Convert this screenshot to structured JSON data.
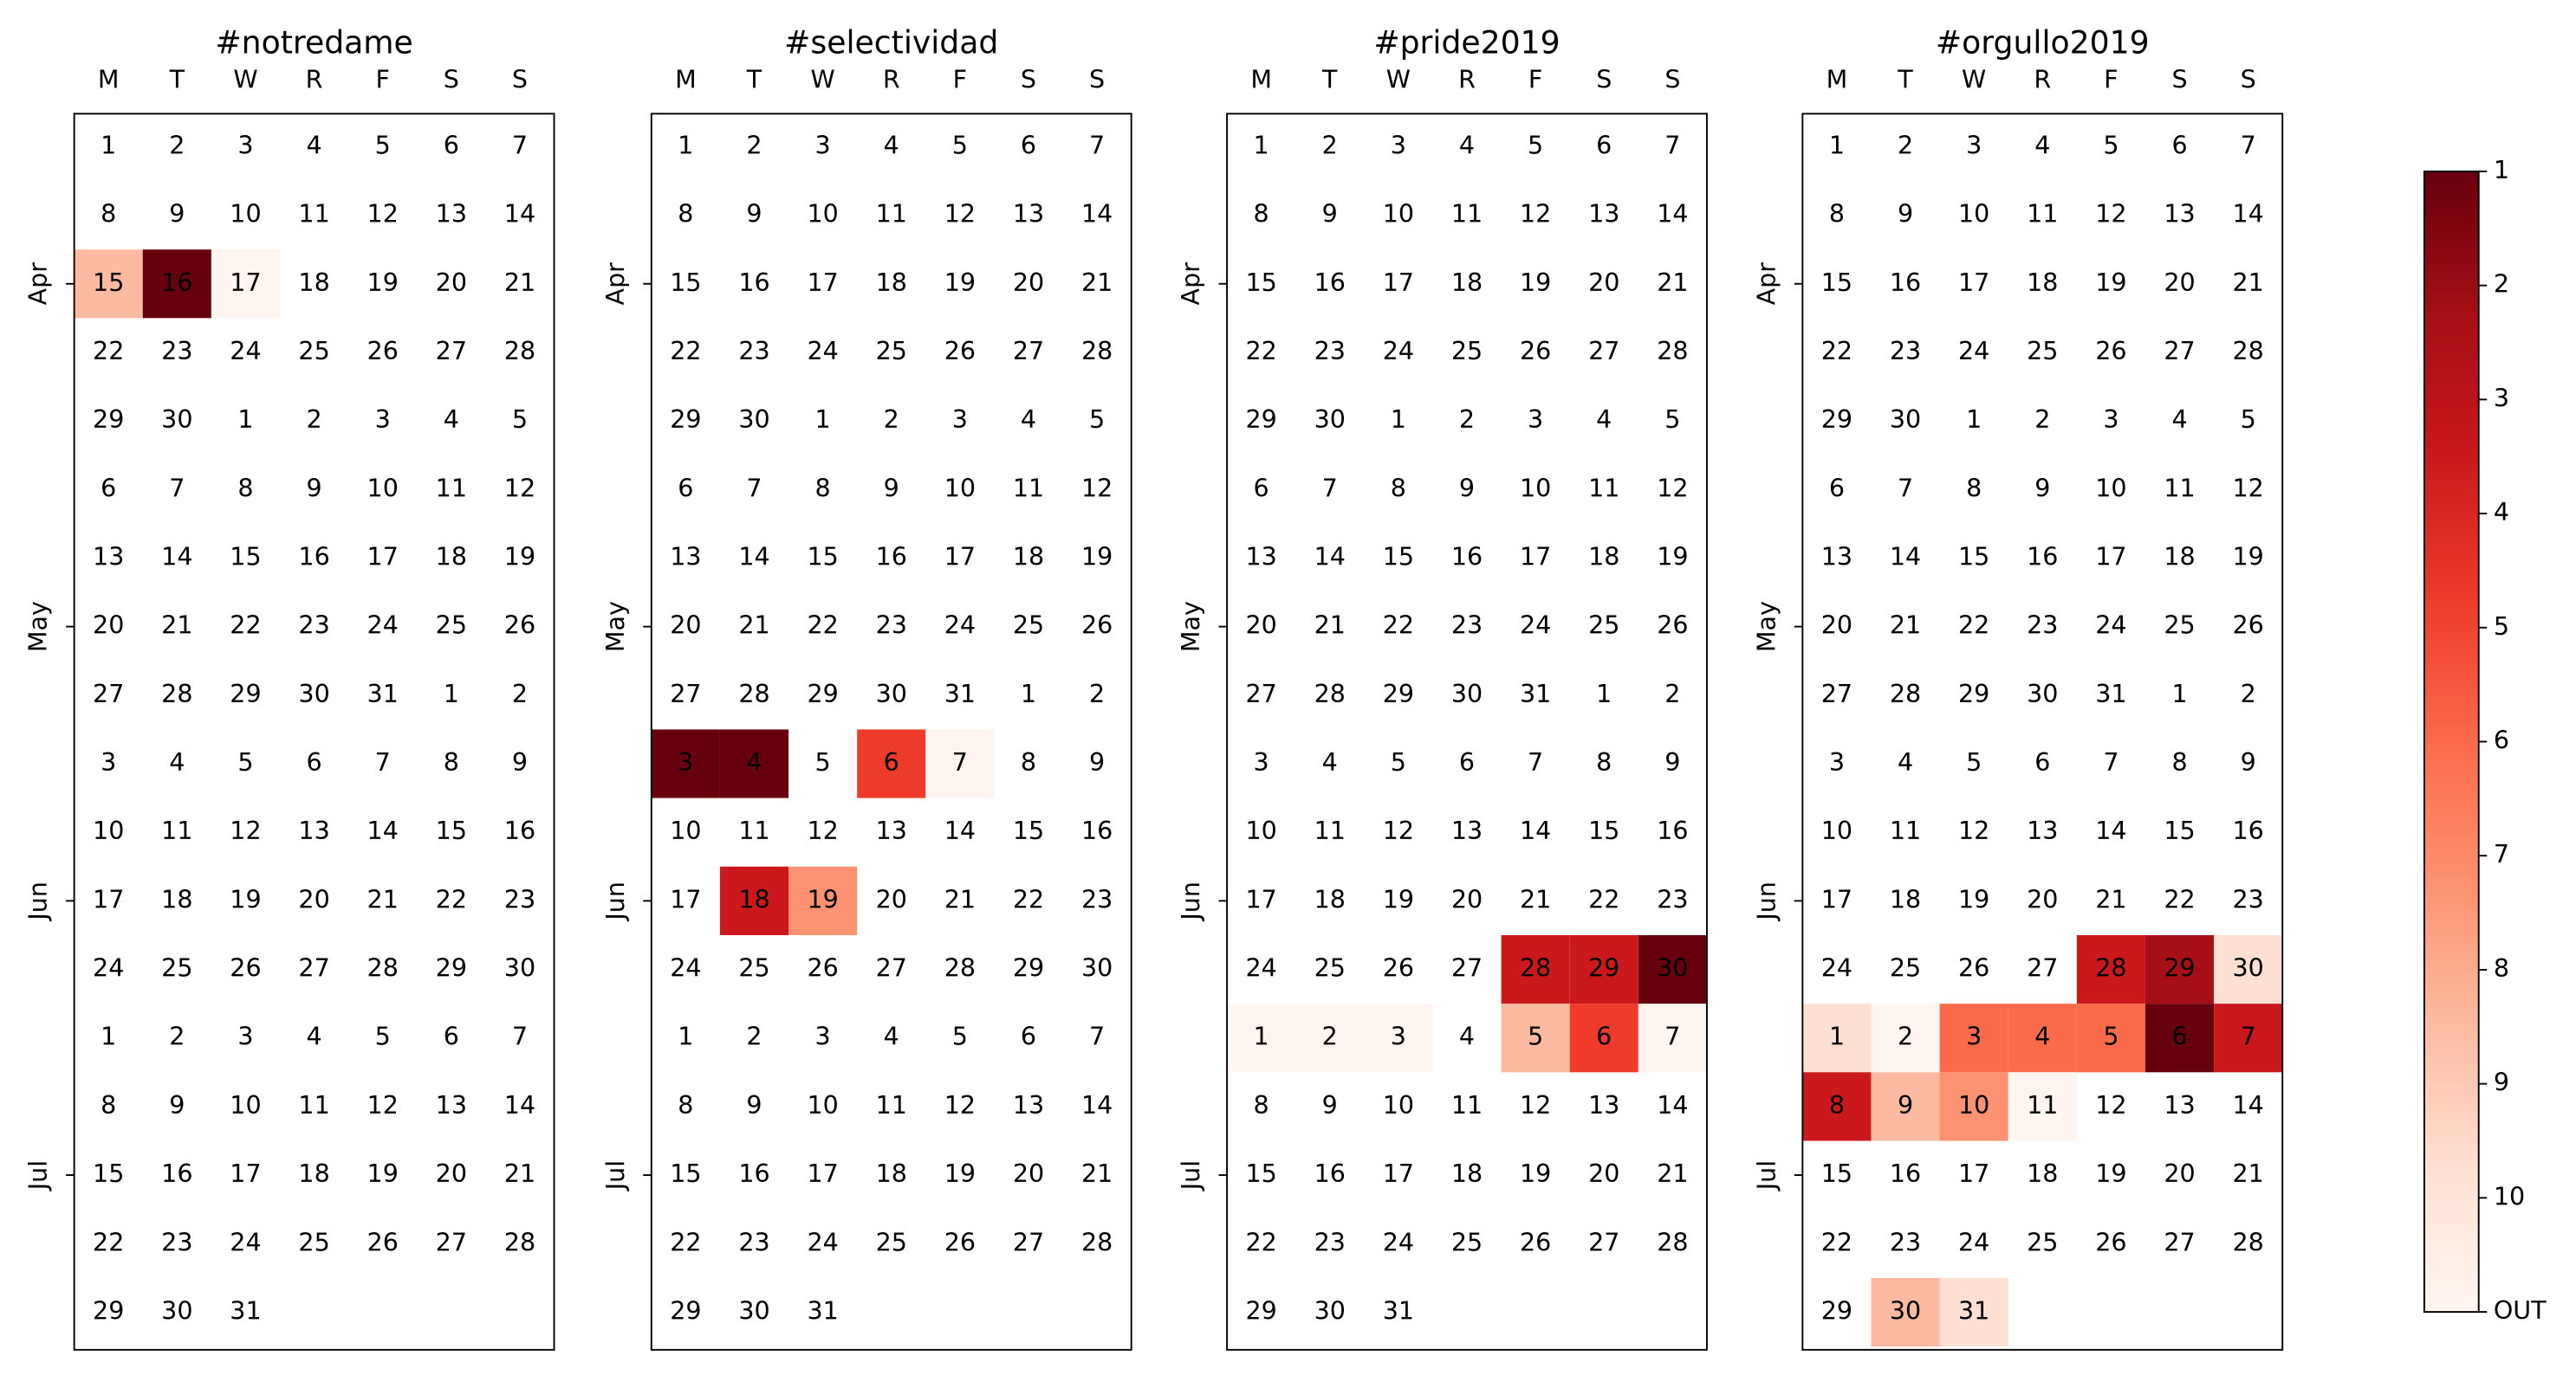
{
  "chart_data": {
    "type": "heatmap",
    "weekday_labels": [
      "M",
      "T",
      "W",
      "R",
      "F",
      "S",
      "S"
    ],
    "month_labels": [
      "Apr",
      "May",
      "Jun",
      "Jul"
    ],
    "month_start_weeks": [
      2,
      7,
      11,
      15
    ],
    "days_in_month": {
      "Apr": 30,
      "May": 31,
      "Jun": 30,
      "Jul": 31
    },
    "colorbar": {
      "ticks": [
        "1",
        "2",
        "3",
        "4",
        "5",
        "6",
        "7",
        "8",
        "9",
        "10",
        "OUT"
      ],
      "colors": [
        "#67000d",
        "#a50f15",
        "#cb181d",
        "#ef3b2c",
        "#fb6a4a",
        "#fc9272",
        "#fcbba1",
        "#fee0d2",
        "#fff5f0"
      ]
    },
    "panels": [
      {
        "title": "#notredame",
        "ranks": [
          {
            "month": "Apr",
            "day": 15,
            "rank": 8
          },
          {
            "month": "Apr",
            "day": 16,
            "rank": 1
          },
          {
            "month": "Apr",
            "day": 17,
            "rank": 10
          }
        ]
      },
      {
        "title": "#selectividad",
        "ranks": [
          {
            "month": "Jun",
            "day": 3,
            "rank": 1
          },
          {
            "month": "Jun",
            "day": 4,
            "rank": 1
          },
          {
            "month": "Jun",
            "day": 6,
            "rank": 4
          },
          {
            "month": "Jun",
            "day": 7,
            "rank": 10
          },
          {
            "month": "Jun",
            "day": 18,
            "rank": 3
          },
          {
            "month": "Jun",
            "day": 19,
            "rank": 7
          }
        ]
      },
      {
        "title": "#pride2019",
        "ranks": [
          {
            "month": "Jun",
            "day": 28,
            "rank": 3
          },
          {
            "month": "Jun",
            "day": 29,
            "rank": 3
          },
          {
            "month": "Jun",
            "day": 30,
            "rank": 1
          },
          {
            "month": "Jul",
            "day": 1,
            "rank": 10
          },
          {
            "month": "Jul",
            "day": 2,
            "rank": 10
          },
          {
            "month": "Jul",
            "day": 3,
            "rank": 10
          },
          {
            "month": "Jul",
            "day": 5,
            "rank": 8
          },
          {
            "month": "Jul",
            "day": 6,
            "rank": 4
          },
          {
            "month": "Jul",
            "day": 7,
            "rank": 10
          }
        ]
      },
      {
        "title": "#orgullo2019",
        "ranks": [
          {
            "month": "Jun",
            "day": 28,
            "rank": 3
          },
          {
            "month": "Jun",
            "day": 29,
            "rank": 2
          },
          {
            "month": "Jun",
            "day": 30,
            "rank": 9
          },
          {
            "month": "Jul",
            "day": 1,
            "rank": 9
          },
          {
            "month": "Jul",
            "day": 2,
            "rank": 10
          },
          {
            "month": "Jul",
            "day": 3,
            "rank": 5
          },
          {
            "month": "Jul",
            "day": 4,
            "rank": 6
          },
          {
            "month": "Jul",
            "day": 5,
            "rank": 5
          },
          {
            "month": "Jul",
            "day": 6,
            "rank": 1
          },
          {
            "month": "Jul",
            "day": 7,
            "rank": 3
          },
          {
            "month": "Jul",
            "day": 8,
            "rank": 3
          },
          {
            "month": "Jul",
            "day": 9,
            "rank": 8
          },
          {
            "month": "Jul",
            "day": 10,
            "rank": 7
          },
          {
            "month": "Jul",
            "day": 11,
            "rank": 10
          },
          {
            "month": "Jul",
            "day": 30,
            "rank": 8
          },
          {
            "month": "Jul",
            "day": 31,
            "rank": 9
          }
        ]
      }
    ]
  }
}
